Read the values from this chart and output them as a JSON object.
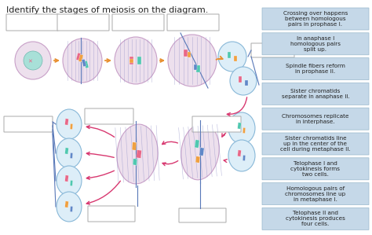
{
  "title": "Identify the stages of meiosis on the diagram.",
  "title_fontsize": 8,
  "background_color": "#ffffff",
  "legend_boxes": [
    "Crossing over happens\nbetween homologous\npairs in prophase I.",
    "In anaphase I\nhomologous pairs\nsplit up.",
    "Spindle fibers reform\nin prophase II.",
    "Sister chromatids\nseparate in anaphase II.",
    "Chromosomes replicate\nin interphase.",
    "Sister chromatids line\nup in the center of the\ncell during metaphase II.",
    "Telophase I and\ncytokinesis forms\ntwo cells.",
    "Homologous pairs of\nchromosomes line up\nin metaphase I.",
    "Telophase II and\ncytokinesis produces\nfour cells."
  ],
  "legend_box_color": "#c5d8e8",
  "legend_box_edge": "#99b8cc",
  "legend_text_color": "#222222",
  "legend_fontsize": 5.2,
  "cell_fill": "#ede0ed",
  "cell_edge": "#c8a0c8",
  "cell_fill2": "#ddeef8",
  "cell_edge2": "#88b8d8",
  "nucleus_fill": "#a8e0d8",
  "nucleus_edge": "#70b8b0",
  "spindle_color": "#9090c8",
  "chrom_pink": "#e86888",
  "chrom_orange": "#f0a040",
  "chrom_teal": "#50c8b0",
  "chrom_blue": "#6088c8",
  "answer_box_color": "#ffffff",
  "answer_box_edge": "#aaaaaa",
  "orange_arrow": "#e89030",
  "pink_arrow": "#d83870",
  "blue_line": "#5878b8"
}
